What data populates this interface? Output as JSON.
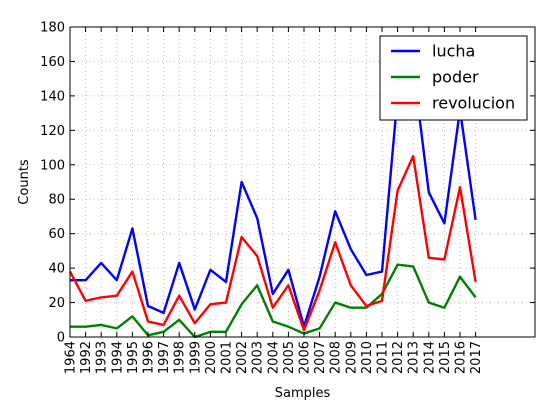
{
  "chart_data": {
    "type": "line",
    "title": "",
    "xlabel": "Samples",
    "ylabel": "Counts",
    "ylim": [
      0,
      180
    ],
    "yticks": [
      0,
      20,
      40,
      60,
      80,
      100,
      120,
      140,
      160,
      180
    ],
    "grid": true,
    "legend_position": "top-right",
    "categories": [
      "1964",
      "1992",
      "1993",
      "1994",
      "1995",
      "1996",
      "1997",
      "1998",
      "1999",
      "2000",
      "2001",
      "2002",
      "2003",
      "2004",
      "2005",
      "2006",
      "2007",
      "2008",
      "2009",
      "2010",
      "2011",
      "2012",
      "2013",
      "2014",
      "2015",
      "2016",
      "2017"
    ],
    "series": [
      {
        "name": "lucha",
        "color": "#0000ff",
        "values": [
          33,
          33,
          43,
          33,
          63,
          18,
          14,
          43,
          16,
          39,
          32,
          90,
          69,
          25,
          39,
          6,
          35,
          73,
          51,
          36,
          38,
          140,
          157,
          84,
          66,
          132,
          68
        ]
      },
      {
        "name": "poder",
        "color": "#008000",
        "values": [
          6,
          6,
          7,
          5,
          12,
          1,
          3,
          10,
          0,
          3,
          3,
          19,
          30,
          9,
          6,
          2,
          5,
          20,
          17,
          17,
          25,
          42,
          41,
          20,
          17,
          35,
          23
        ]
      },
      {
        "name": "revolucion",
        "color": "#ff0000",
        "values": [
          38,
          21,
          23,
          24,
          38,
          9,
          7,
          24,
          8,
          19,
          20,
          58,
          47,
          17,
          30,
          4,
          27,
          55,
          30,
          18,
          21,
          85,
          105,
          46,
          45,
          87,
          32
        ]
      }
    ]
  }
}
